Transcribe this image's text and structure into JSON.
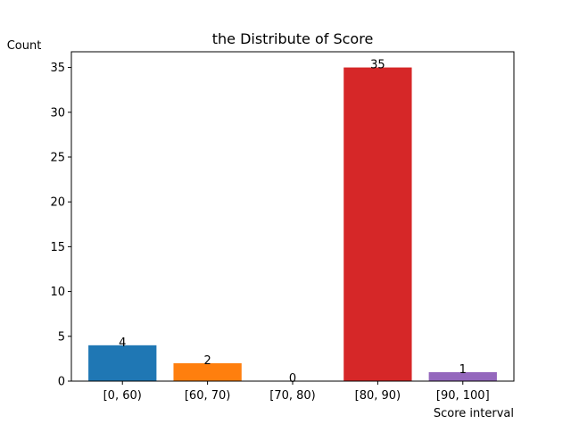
{
  "chart_data": {
    "type": "bar",
    "title": "the Distribute of Score",
    "xlabel": "Score interval",
    "ylabel": "Count",
    "categories": [
      "[0, 60)",
      "[60, 70)",
      "[70, 80)",
      "[80, 90)",
      "[90, 100]"
    ],
    "values": [
      4,
      2,
      0,
      35,
      1
    ],
    "data_labels": [
      "4",
      "2",
      "0",
      "35",
      "1"
    ],
    "colors": [
      "#1f77b4",
      "#ff7f0e",
      "#2ca02c",
      "#d62728",
      "#9467bd"
    ],
    "ylim": [
      0,
      36.75
    ],
    "yticks": [
      0,
      5,
      10,
      15,
      20,
      25,
      30,
      35
    ],
    "ytick_labels": [
      "0",
      "5",
      "10",
      "15",
      "20",
      "25",
      "30",
      "35"
    ],
    "grid": false,
    "legend": "none"
  }
}
